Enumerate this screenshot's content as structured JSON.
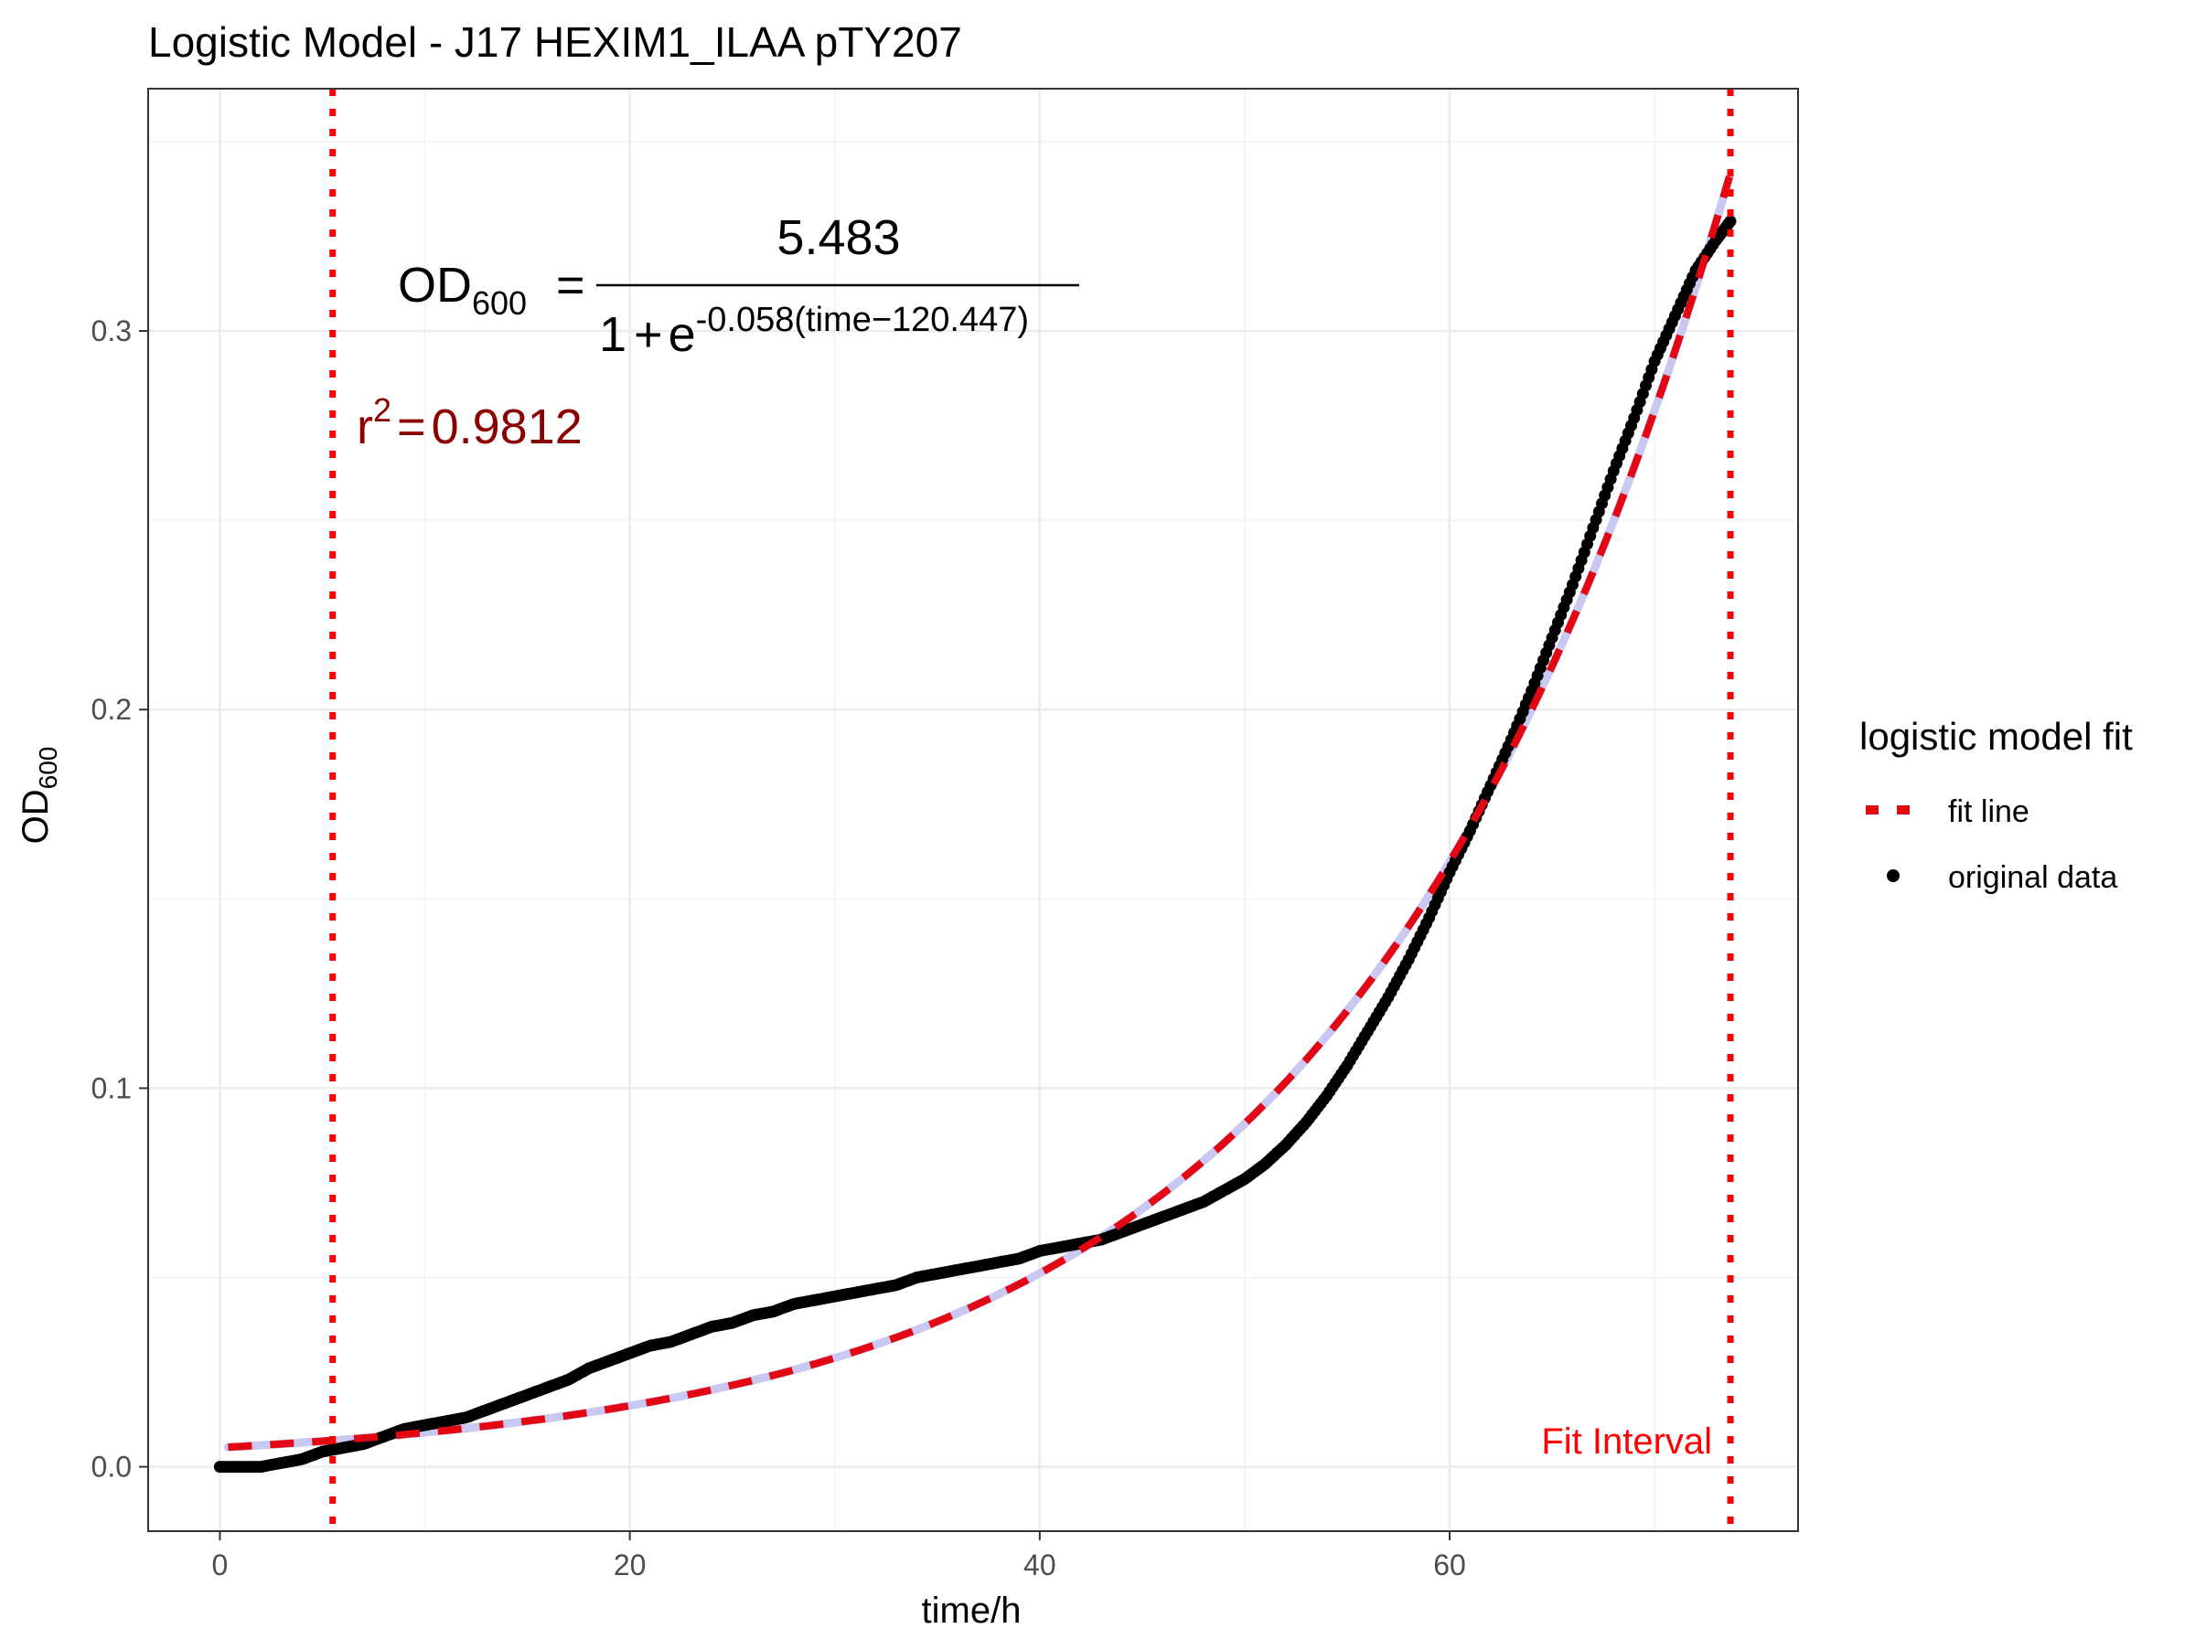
{
  "chart_data": {
    "type": "scatter",
    "title": "Logistic Model -  J17 HEXIM1_ILAA pTY207",
    "xlabel": "time/h",
    "ylabel": {
      "main": "OD",
      "sub": "600"
    },
    "xlim": [
      -3.5,
      77
    ],
    "ylim": [
      -0.017,
      0.364
    ],
    "x_ticks": [
      0,
      20,
      40,
      60
    ],
    "x_tick_labels": [
      "0",
      "20",
      "40",
      "60"
    ],
    "y_ticks": [
      0.0,
      0.1,
      0.2,
      0.3
    ],
    "y_tick_labels": [
      "0.0",
      "0.1",
      "0.2",
      "0.3"
    ],
    "grid": true,
    "legend": {
      "title": "logistic model fit",
      "position": "right",
      "entries": [
        {
          "label": "fit line",
          "kind": "dashed-line",
          "color": "#e30613"
        },
        {
          "label": "original data",
          "kind": "point",
          "color": "#000000"
        }
      ]
    },
    "equation": {
      "lhs_main": "OD",
      "lhs_sub": "600",
      "equals": "=",
      "numerator": "5.483",
      "denom_base": "1",
      "denom_plus": "+",
      "denom_e": "e",
      "exponent": "-0.058(time−120.447)",
      "model": {
        "K": 5.483,
        "r": 0.058,
        "t0": 120.447
      }
    },
    "r_squared": {
      "symbol": "r",
      "power": "2",
      "equals": "=",
      "value": "0.9812",
      "color": "#8b0000"
    },
    "fit_interval": {
      "label": "Fit Interval",
      "start": 5.5,
      "end": 73.7,
      "color": "#ff0000"
    },
    "series": [
      {
        "name": "original data",
        "color": "#000000",
        "points": [
          [
            0,
            0.0
          ],
          [
            1,
            0.0
          ],
          [
            2,
            0.0
          ],
          [
            3,
            0.001
          ],
          [
            4,
            0.002
          ],
          [
            5,
            0.004
          ],
          [
            6,
            0.005
          ],
          [
            7,
            0.006
          ],
          [
            8,
            0.008
          ],
          [
            9,
            0.01
          ],
          [
            10,
            0.011
          ],
          [
            11,
            0.012
          ],
          [
            12,
            0.013
          ],
          [
            13,
            0.015
          ],
          [
            14,
            0.017
          ],
          [
            15,
            0.019
          ],
          [
            16,
            0.021
          ],
          [
            17,
            0.023
          ],
          [
            18,
            0.026
          ],
          [
            19,
            0.028
          ],
          [
            20,
            0.03
          ],
          [
            21,
            0.032
          ],
          [
            22,
            0.033
          ],
          [
            23,
            0.035
          ],
          [
            24,
            0.037
          ],
          [
            25,
            0.038
          ],
          [
            26,
            0.04
          ],
          [
            27,
            0.041
          ],
          [
            28,
            0.043
          ],
          [
            29,
            0.044
          ],
          [
            30,
            0.045
          ],
          [
            31,
            0.046
          ],
          [
            32,
            0.047
          ],
          [
            33,
            0.048
          ],
          [
            34,
            0.05
          ],
          [
            35,
            0.051
          ],
          [
            36,
            0.052
          ],
          [
            37,
            0.053
          ],
          [
            38,
            0.054
          ],
          [
            39,
            0.055
          ],
          [
            40,
            0.057
          ],
          [
            41,
            0.058
          ],
          [
            42,
            0.059
          ],
          [
            43,
            0.06
          ],
          [
            44,
            0.062
          ],
          [
            45,
            0.064
          ],
          [
            46,
            0.066
          ],
          [
            47,
            0.068
          ],
          [
            48,
            0.07
          ],
          [
            49,
            0.073
          ],
          [
            50,
            0.076
          ],
          [
            51,
            0.08
          ],
          [
            52,
            0.085
          ],
          [
            53,
            0.091
          ],
          [
            54,
            0.098
          ],
          [
            55,
            0.106
          ],
          [
            56,
            0.115
          ],
          [
            57,
            0.124
          ],
          [
            58,
            0.134
          ],
          [
            59,
            0.145
          ],
          [
            60,
            0.157
          ],
          [
            61,
            0.168
          ],
          [
            62,
            0.18
          ],
          [
            63,
            0.192
          ],
          [
            64,
            0.205
          ],
          [
            65,
            0.219
          ],
          [
            66,
            0.233
          ],
          [
            67,
            0.248
          ],
          [
            68,
            0.263
          ],
          [
            69,
            0.277
          ],
          [
            70,
            0.292
          ],
          [
            71,
            0.304
          ],
          [
            72,
            0.316
          ],
          [
            73,
            0.324
          ],
          [
            73.7,
            0.329
          ]
        ]
      }
    ]
  }
}
